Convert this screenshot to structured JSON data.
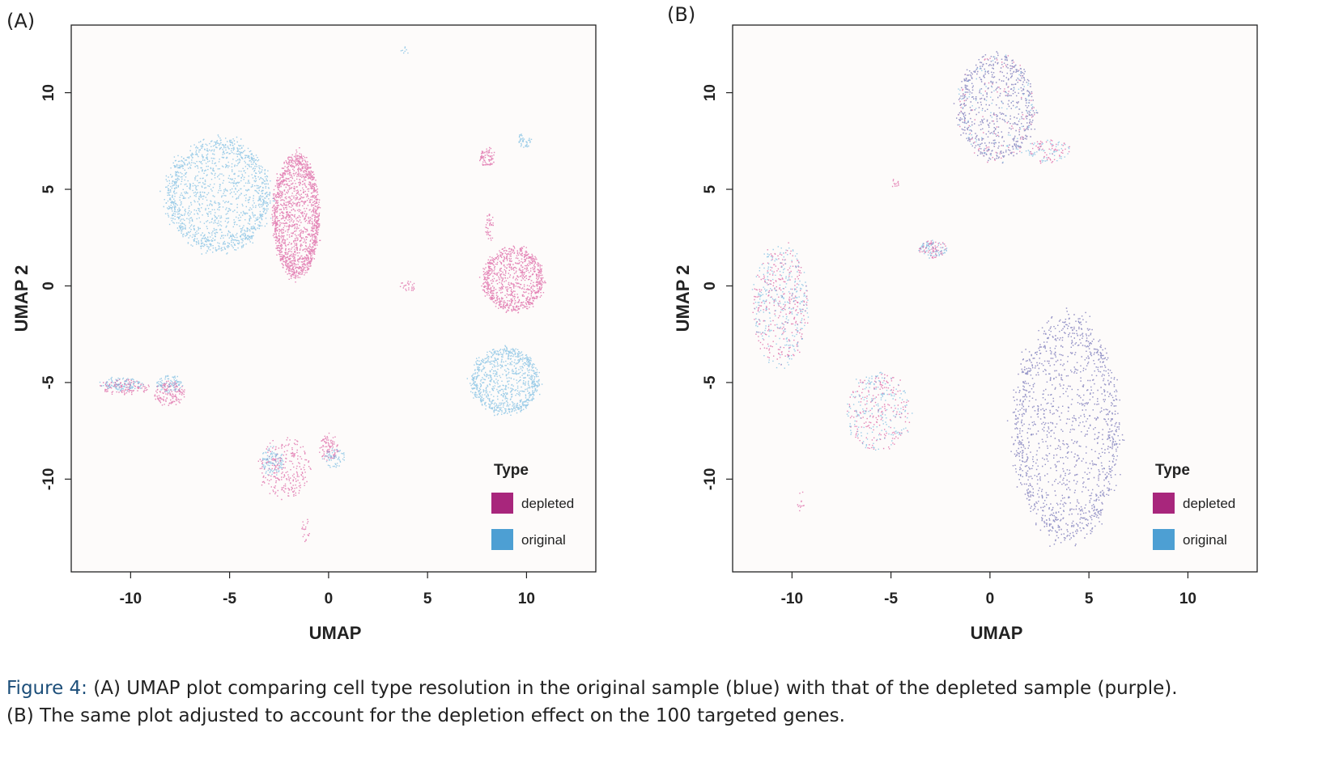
{
  "chart_data": [
    {
      "type": "scatter",
      "panel_label": "(A)",
      "xlabel": "UMAP",
      "ylabel": "UMAP 2",
      "xlim": [
        -13,
        13.5
      ],
      "ylim": [
        -14.8,
        13.5
      ],
      "xticks": [
        -10,
        -5,
        0,
        5,
        10
      ],
      "yticks": [
        -10,
        -5,
        0,
        5,
        10
      ],
      "grid": false,
      "legend": {
        "title": "Type",
        "position": "bottom-right",
        "entries": [
          {
            "label": "depleted",
            "color": "#a8267c"
          },
          {
            "label": "original",
            "color": "#4d9fd3"
          }
        ]
      },
      "series": [
        {
          "name": "depleted",
          "color": "#d0257f",
          "clusters": [
            {
              "x": [
                -2.8,
                -0.5
              ],
              "y": [
                0.5,
                6.8
              ],
              "points": 1600
            },
            {
              "x": [
                7.8,
                10.8
              ],
              "y": [
                -1.3,
                2.0
              ],
              "points": 900
            },
            {
              "x": [
                -11.6,
                -9.0
              ],
              "y": [
                -5.6,
                -4.8
              ],
              "points": 120
            },
            {
              "x": [
                -8.8,
                -7.3
              ],
              "y": [
                -6.2,
                -4.9
              ],
              "points": 150
            },
            {
              "x": [
                -3.5,
                -1.0
              ],
              "y": [
                -11.0,
                -7.8
              ],
              "points": 260
            },
            {
              "x": [
                -0.5,
                0.5
              ],
              "y": [
                -9.0,
                -7.6
              ],
              "points": 90
            },
            {
              "x": [
                7.6,
                8.4
              ],
              "y": [
                6.2,
                7.2
              ],
              "points": 80
            },
            {
              "x": [
                7.9,
                8.3
              ],
              "y": [
                2.3,
                4.2
              ],
              "points": 40
            },
            {
              "x": [
                3.6,
                4.4
              ],
              "y": [
                -0.3,
                0.3
              ],
              "points": 25
            },
            {
              "x": [
                -1.4,
                -1.0
              ],
              "y": [
                -13.2,
                -12.0
              ],
              "points": 20
            }
          ]
        },
        {
          "name": "original",
          "color": "#4aa6d8",
          "clusters": [
            {
              "x": [
                -8.2,
                -3.0
              ],
              "y": [
                1.8,
                7.6
              ],
              "points": 1700
            },
            {
              "x": [
                7.2,
                10.6
              ],
              "y": [
                -6.6,
                -3.2
              ],
              "points": 900
            },
            {
              "x": [
                -11.6,
                -9.4
              ],
              "y": [
                -5.4,
                -4.7
              ],
              "points": 110
            },
            {
              "x": [
                -8.7,
                -7.4
              ],
              "y": [
                -5.5,
                -4.6
              ],
              "points": 90
            },
            {
              "x": [
                -3.4,
                -2.3
              ],
              "y": [
                -9.8,
                -8.3
              ],
              "points": 110
            },
            {
              "x": [
                -0.3,
                0.8
              ],
              "y": [
                -9.4,
                -8.4
              ],
              "points": 60
            },
            {
              "x": [
                9.5,
                10.2
              ],
              "y": [
                7.2,
                7.9
              ],
              "points": 45
            },
            {
              "x": [
                3.6,
                4.1
              ],
              "y": [
                12.0,
                12.4
              ],
              "points": 8
            }
          ]
        }
      ]
    },
    {
      "type": "scatter",
      "panel_label": "(B)",
      "xlabel": "UMAP",
      "ylabel": "UMAP 2",
      "xlim": [
        -13,
        13.5
      ],
      "ylim": [
        -14.8,
        13.5
      ],
      "xticks": [
        -10,
        -5,
        0,
        5,
        10
      ],
      "yticks": [
        -10,
        -5,
        0,
        5,
        10
      ],
      "grid": false,
      "legend": {
        "title": "Type",
        "position": "bottom-right",
        "entries": [
          {
            "label": "depleted",
            "color": "#a8267c"
          },
          {
            "label": "original",
            "color": "#4d9fd3"
          }
        ]
      },
      "series": [
        {
          "name": "depleted",
          "color": "#d0257f",
          "clusters": [
            {
              "x": [
                -1.6,
                2.2
              ],
              "y": [
                6.5,
                12.0
              ],
              "points": 700
            },
            {
              "x": [
                1.2,
                6.5
              ],
              "y": [
                -13.2,
                -1.6
              ],
              "points": 1500
            },
            {
              "x": [
                -12.0,
                -9.2
              ],
              "y": [
                -4.2,
                2.2
              ],
              "points": 300
            },
            {
              "x": [
                -7.3,
                -4.0
              ],
              "y": [
                -8.5,
                -4.5
              ],
              "points": 200
            },
            {
              "x": [
                -3.6,
                -2.2
              ],
              "y": [
                1.5,
                2.4
              ],
              "points": 70
            },
            {
              "x": [
                1.8,
                4.0
              ],
              "y": [
                6.4,
                7.6
              ],
              "points": 60
            },
            {
              "x": [
                -5.0,
                -4.6
              ],
              "y": [
                5.1,
                5.6
              ],
              "points": 12
            },
            {
              "x": [
                -9.8,
                -9.4
              ],
              "y": [
                -11.7,
                -10.5
              ],
              "points": 12
            }
          ]
        },
        {
          "name": "original",
          "color": "#4aa6d8",
          "clusters": [
            {
              "x": [
                -1.6,
                2.2
              ],
              "y": [
                6.5,
                12.0
              ],
              "points": 700
            },
            {
              "x": [
                1.2,
                6.5
              ],
              "y": [
                -13.2,
                -1.6
              ],
              "points": 1500
            },
            {
              "x": [
                -12.0,
                -9.2
              ],
              "y": [
                -4.2,
                2.2
              ],
              "points": 300
            },
            {
              "x": [
                -7.3,
                -4.0
              ],
              "y": [
                -8.5,
                -4.5
              ],
              "points": 200
            },
            {
              "x": [
                -3.6,
                -2.2
              ],
              "y": [
                1.5,
                2.4
              ],
              "points": 70
            },
            {
              "x": [
                1.8,
                4.0
              ],
              "y": [
                6.4,
                7.6
              ],
              "points": 60
            }
          ]
        }
      ]
    }
  ],
  "caption": {
    "label": "Figure 4:",
    "line1": "(A) UMAP plot comparing cell type resolution in the original sample (blue) with that of the depleted sample (purple).",
    "line2": "(B) The same plot adjusted to account for the depletion effect on the 100 targeted genes."
  }
}
